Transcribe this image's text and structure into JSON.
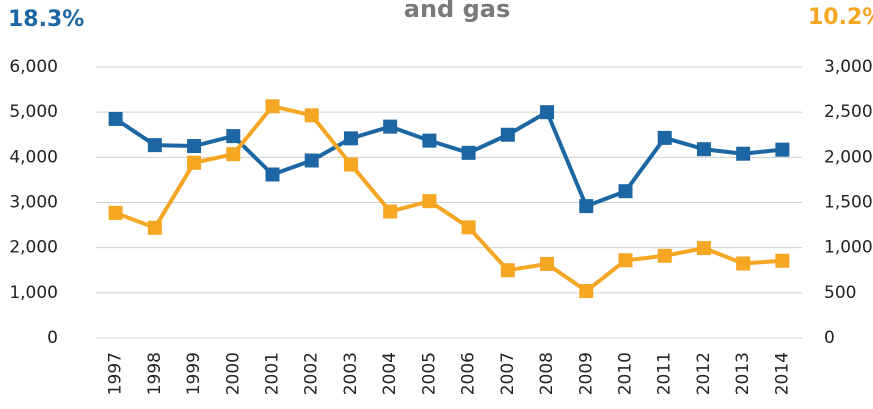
{
  "chart_data": {
    "type": "line",
    "title": "and gas",
    "annotations": [
      {
        "text": "18.3%",
        "color": "#1c67a3"
      },
      {
        "text": "10.2%",
        "color": "#f5a623"
      }
    ],
    "categories": [
      "1997",
      "1998",
      "1999",
      "2000",
      "2001",
      "2002",
      "2003",
      "2004",
      "2005",
      "2006",
      "2007",
      "2008",
      "2009",
      "2010",
      "2011",
      "2012",
      "2013",
      "2014"
    ],
    "series": [
      {
        "color": "#1c67a3",
        "axis": "y",
        "values": [
          4850,
          4270,
          4250,
          4470,
          3620,
          3930,
          4420,
          4680,
          4370,
          4100,
          4500,
          5000,
          2920,
          3250,
          4430,
          4180,
          4080,
          4170
        ]
      },
      {
        "color": "#f5a623",
        "axis": "y2",
        "values": [
          1385,
          1220,
          1940,
          2035,
          2565,
          2465,
          1920,
          1400,
          1515,
          1225,
          750,
          820,
          520,
          860,
          910,
          995,
          825,
          855
        ]
      }
    ],
    "ylim": [
      0,
      6000
    ],
    "yticks": [
      0,
      {
        "value": 1000,
        "label": "1,000"
      },
      {
        "value": 2000,
        "label": "2,000"
      },
      {
        "value": 3000,
        "label": "3,000"
      },
      {
        "value": 4000,
        "label": "4,000"
      },
      {
        "value": 5000,
        "label": "5,000"
      },
      {
        "value": 6000,
        "label": "6,000"
      }
    ],
    "y2lim": [
      0,
      3000
    ],
    "y2ticks": [
      0,
      500,
      {
        "value": 1000,
        "label": "1,000"
      },
      {
        "value": 1500,
        "label": "1,500"
      },
      {
        "value": 2000,
        "label": "2,000"
      },
      {
        "value": 2500,
        "label": "2,500"
      },
      {
        "value": 3000,
        "label": "3,000"
      }
    ],
    "grid": true
  }
}
